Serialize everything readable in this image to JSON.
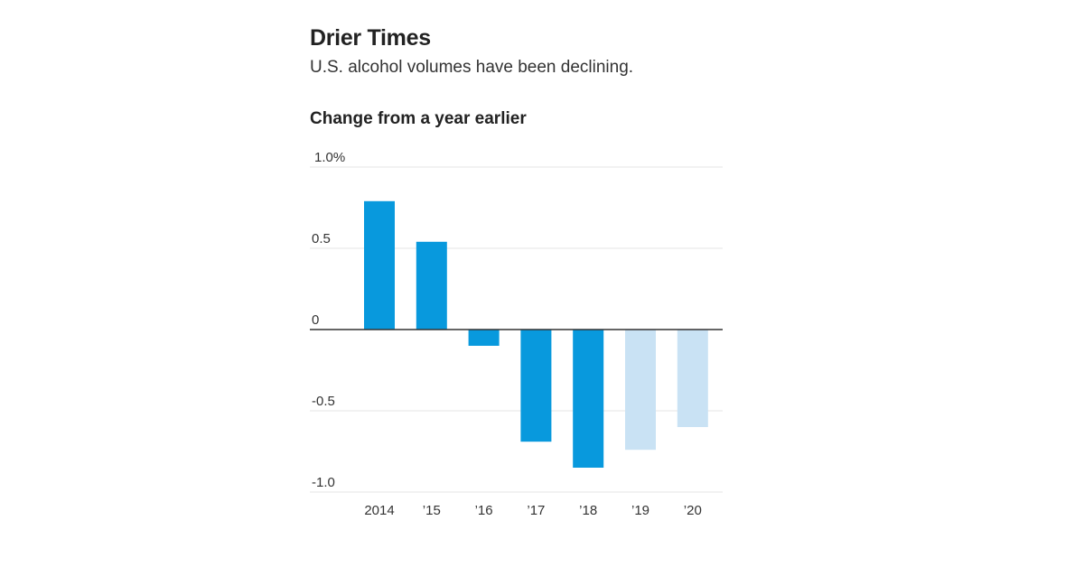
{
  "chart_data": {
    "type": "bar",
    "title": "Drier Times",
    "subtitle": "U.S. alcohol volumes have been declining.",
    "chart_heading": "Change from a year earlier",
    "categories": [
      "2014",
      "’15",
      "’16",
      "’17",
      "’18",
      "’19",
      "’20"
    ],
    "values": [
      0.79,
      0.54,
      -0.1,
      -0.69,
      -0.85,
      -0.74,
      -0.6
    ],
    "projected": [
      false,
      false,
      false,
      false,
      false,
      true,
      true
    ],
    "ylim": [
      -1.0,
      1.0
    ],
    "yticks": [
      {
        "value": 1.0,
        "label": "1.0%"
      },
      {
        "value": 0.5,
        "label": "0.5"
      },
      {
        "value": 0,
        "label": "0"
      },
      {
        "value": -0.5,
        "label": "-0.5"
      },
      {
        "value": -1.0,
        "label": "-1.0"
      }
    ],
    "xlabel": "",
    "ylabel": "",
    "grid": true,
    "colors": {
      "actual": "#0899dd",
      "projected": "#c9e2f4",
      "grid": "#e6e6e6",
      "zero_line": "#333333",
      "text": "#333333"
    }
  }
}
